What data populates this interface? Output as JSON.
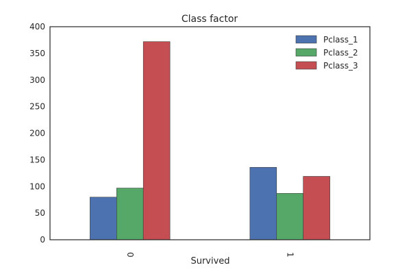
{
  "chart_data": {
    "type": "bar",
    "title": "Class factor",
    "xlabel": "Survived",
    "ylabel": "",
    "categories": [
      "0",
      "1"
    ],
    "series": [
      {
        "name": "Pclass_1",
        "values": [
          80,
          136
        ],
        "color": "#4c72b0"
      },
      {
        "name": "Pclass_2",
        "values": [
          97,
          87
        ],
        "color": "#55a868"
      },
      {
        "name": "Pclass_3",
        "values": [
          372,
          119
        ],
        "color": "#c44e52"
      }
    ],
    "ylim": [
      0,
      400
    ],
    "yticks": [
      0,
      50,
      100,
      150,
      200,
      250,
      300,
      350,
      400
    ],
    "grid": false,
    "legend_position": "top-right"
  }
}
